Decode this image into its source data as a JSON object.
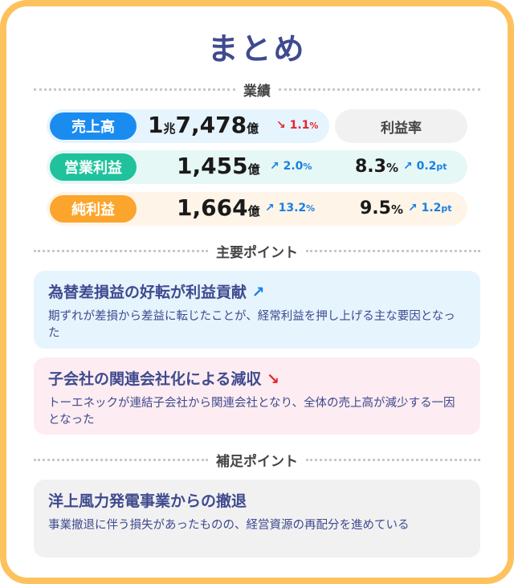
{
  "title": "まとめ",
  "sections": {
    "results": "業績",
    "key_points": "主要ポイント",
    "supplement": "補足ポイント"
  },
  "metrics": {
    "margin_header": "利益率",
    "rows": [
      {
        "label": "売上高",
        "value_prefix": "1",
        "value_prefix_unit": "兆",
        "value": "7,478",
        "unit": "億",
        "change": "1.1",
        "change_unit": "%",
        "direction": "down",
        "color": "#1a8cf0",
        "bg": "#e6f4fe"
      },
      {
        "label": "営業利益",
        "value": "1,455",
        "unit": "億",
        "change": "2.0",
        "change_unit": "%",
        "direction": "up",
        "margin": "8.3",
        "margin_unit": "%",
        "margin_change": "0.2",
        "margin_change_unit": "pt",
        "margin_direction": "up",
        "color": "#1fc29b",
        "bg": "#e6f8f5"
      },
      {
        "label": "純利益",
        "value": "1,664",
        "unit": "億",
        "change": "13.2",
        "change_unit": "%",
        "direction": "up",
        "margin": "9.5",
        "margin_unit": "%",
        "margin_change": "1.2",
        "margin_change_unit": "pt",
        "margin_direction": "up",
        "color": "#fba52c",
        "bg": "#fef4e8"
      }
    ]
  },
  "icons": {
    "up": "↗",
    "down": "↘"
  },
  "points": [
    {
      "title": "為替差損益の好転が利益貢献",
      "direction": "up",
      "body": "期ずれが差損から差益に転じたことが、経常利益を押し上げる主な要因となった",
      "bg": "#e6f4fe"
    },
    {
      "title": "子会社の関連会社化による減収",
      "direction": "down",
      "body": "トーエネックが連結子会社から関連会社となり、全体の売上高が減少する一因となった",
      "bg": "#fdecf1"
    }
  ],
  "supplement": {
    "title": "洋上風力発電事業からの撤退",
    "body": "事業撤退に伴う損失があったものの、経営資源の再配分を進めている",
    "bg": "#f1f1f1"
  }
}
